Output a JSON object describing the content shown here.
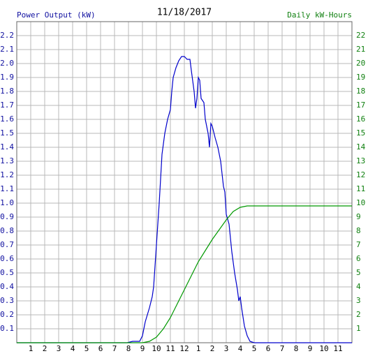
{
  "chart_data": {
    "type": "line",
    "title": "11/18/2017",
    "y_label": "Power Output (kW)",
    "y2_label": "Daily kW-Hours",
    "grid": true,
    "xlim": [
      0,
      24
    ],
    "xticks": [
      1,
      2,
      3,
      4,
      5,
      6,
      7,
      8,
      9,
      10,
      11,
      12,
      {
        "value": 13,
        "label": "1"
      },
      {
        "value": 14,
        "label": "2"
      },
      {
        "value": 15,
        "label": "3"
      },
      {
        "value": 16,
        "label": "4"
      },
      {
        "value": 17,
        "label": "5"
      },
      {
        "value": 18,
        "label": "6"
      },
      {
        "value": 19,
        "label": "7"
      },
      {
        "value": 20,
        "label": "8"
      },
      {
        "value": 21,
        "label": "9"
      },
      {
        "value": 22,
        "label": "10"
      },
      {
        "value": 23,
        "label": "11"
      }
    ],
    "ylim": [
      0,
      2.3
    ],
    "yticks": [
      0.1,
      0.2,
      0.3,
      0.4,
      0.5,
      0.6,
      0.7,
      0.8,
      0.9,
      {
        "value": 1,
        "label": "1.0"
      },
      1.1,
      1.2,
      1.3,
      1.4,
      1.5,
      1.6,
      1.7,
      1.8,
      1.9,
      {
        "value": 2,
        "label": "2.0"
      },
      2.1,
      2.2
    ],
    "y2lim": [
      0,
      23
    ],
    "y2ticks": [
      1,
      2,
      3,
      4,
      5,
      6,
      7,
      8,
      9,
      10,
      11,
      12,
      13,
      14,
      15,
      16,
      17,
      18,
      19,
      20,
      21,
      22
    ],
    "y_color": "#1010a0",
    "y2_color": "#108010",
    "series": [
      {
        "name": "Power Output (kW)",
        "color": "#0000cc",
        "x": [
          0,
          7.9,
          8.3,
          8.8,
          9.0,
          9.2,
          9.5,
          9.7,
          9.8,
          10.0,
          10.2,
          10.4,
          10.6,
          10.8,
          11.0,
          11.1,
          11.2,
          11.4,
          11.6,
          11.8,
          12.0,
          12.2,
          12.4,
          12.5,
          12.7,
          12.8,
          12.9,
          13.0,
          13.1,
          13.2,
          13.4,
          13.5,
          13.7,
          13.8,
          13.9,
          14.0,
          14.2,
          14.4,
          14.6,
          14.8,
          14.9,
          15.0,
          15.2,
          15.4,
          15.6,
          15.8,
          15.9,
          16.0,
          16.1,
          16.3,
          16.5,
          16.7,
          17.0,
          24
        ],
        "values": [
          0,
          0,
          0.01,
          0.01,
          0.05,
          0.15,
          0.25,
          0.33,
          0.4,
          0.7,
          1.0,
          1.35,
          1.5,
          1.6,
          1.67,
          1.8,
          1.9,
          1.97,
          2.02,
          2.05,
          2.05,
          2.03,
          2.03,
          1.95,
          1.8,
          1.68,
          1.75,
          1.9,
          1.88,
          1.75,
          1.72,
          1.6,
          1.5,
          1.4,
          1.57,
          1.55,
          1.47,
          1.4,
          1.3,
          1.12,
          1.08,
          0.92,
          0.85,
          0.65,
          0.5,
          0.38,
          0.3,
          0.33,
          0.25,
          0.12,
          0.05,
          0.01,
          0,
          0
        ]
      },
      {
        "name": "Daily kW-Hours",
        "color": "#009900",
        "axis": "y2",
        "x": [
          0,
          9.0,
          9.5,
          10.0,
          10.5,
          11.0,
          11.5,
          12.0,
          12.5,
          13.0,
          13.5,
          14.0,
          14.5,
          15.0,
          15.5,
          16.0,
          16.5,
          17.0,
          24
        ],
        "values": [
          0,
          0,
          0.1,
          0.4,
          1.0,
          1.8,
          2.8,
          3.8,
          4.8,
          5.8,
          6.6,
          7.4,
          8.1,
          8.8,
          9.4,
          9.7,
          9.8,
          9.8,
          9.8
        ]
      }
    ]
  }
}
